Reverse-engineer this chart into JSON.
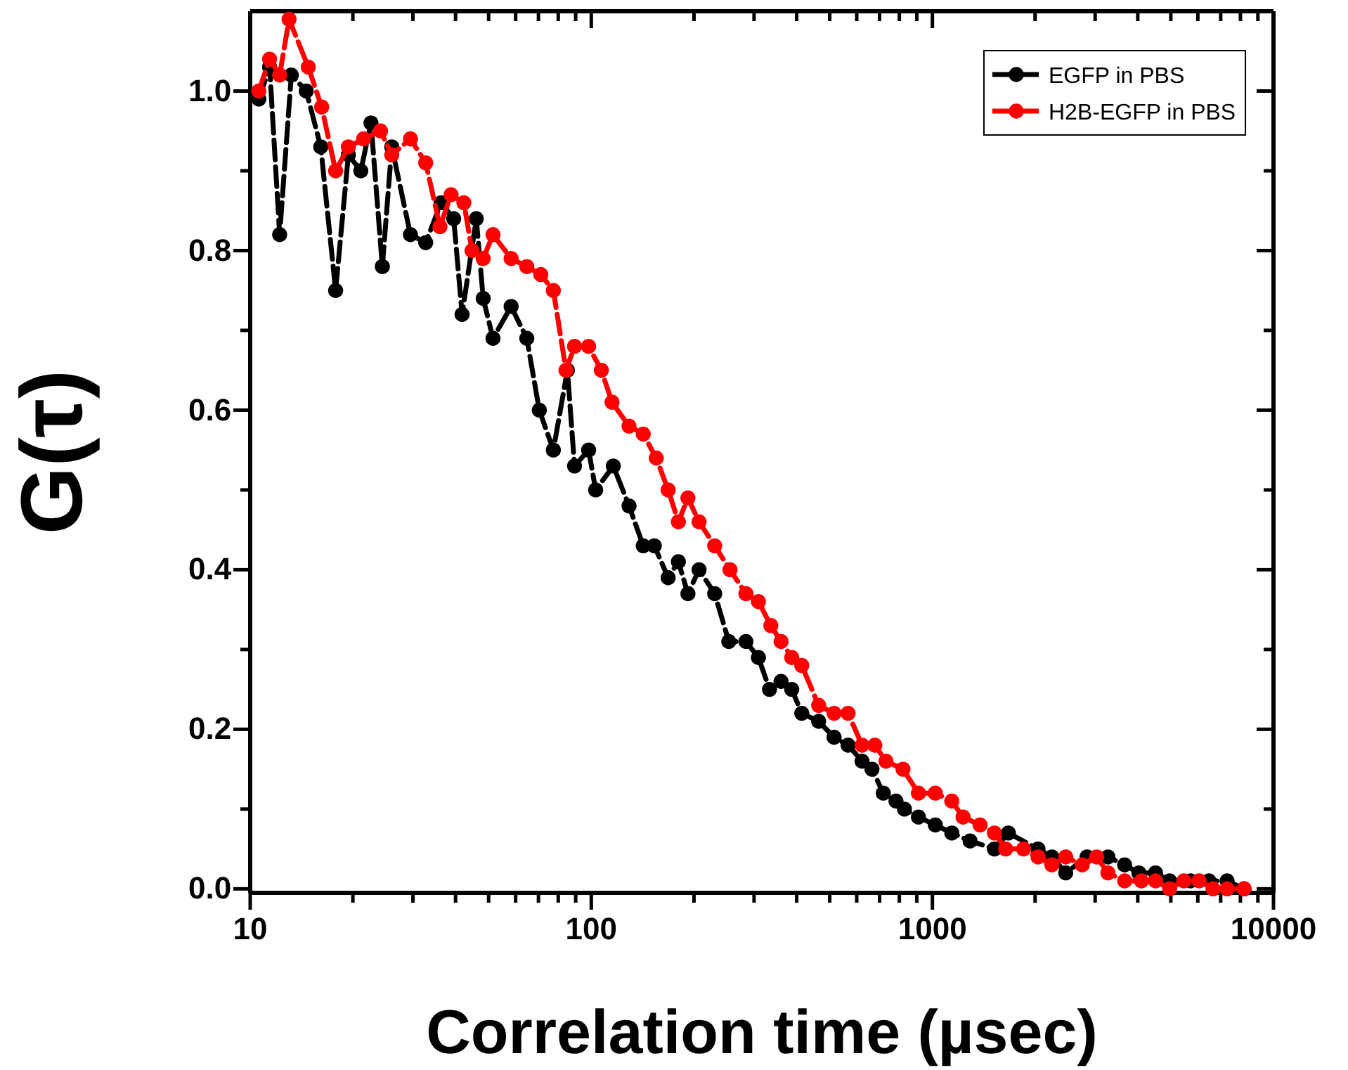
{
  "chart_data": {
    "type": "line",
    "xlabel": "Correlation time (µsec)",
    "ylabel": "G(τ)",
    "log": "x",
    "xlim": [
      10,
      10000
    ],
    "ylim": [
      -0.005,
      1.1
    ],
    "xticks": [
      10,
      {
        "value": 20,
        "label": null
      },
      {
        "value": 30,
        "label": null
      },
      {
        "value": 40,
        "label": null
      },
      {
        "value": 50,
        "label": null
      },
      {
        "value": 60,
        "label": null
      },
      {
        "value": 70,
        "label": null
      },
      {
        "value": 80,
        "label": null
      },
      {
        "value": 90,
        "label": null
      },
      100,
      {
        "value": 200,
        "label": null
      },
      {
        "value": 300,
        "label": null
      },
      {
        "value": 400,
        "label": null
      },
      {
        "value": 500,
        "label": null
      },
      {
        "value": 600,
        "label": null
      },
      {
        "value": 700,
        "label": null
      },
      {
        "value": 800,
        "label": null
      },
      {
        "value": 900,
        "label": null
      },
      1000,
      {
        "value": 2000,
        "label": null
      },
      {
        "value": 3000,
        "label": null
      },
      {
        "value": 4000,
        "label": null
      },
      {
        "value": 5000,
        "label": null
      },
      {
        "value": 6000,
        "label": null
      },
      {
        "value": 7000,
        "label": null
      },
      {
        "value": 8000,
        "label": null
      },
      {
        "value": 9000,
        "label": null
      },
      10000
    ],
    "yticks": [
      {
        "value": 0,
        "label": "0.0"
      },
      {
        "value": 0.1,
        "label": null
      },
      {
        "value": 0.2,
        "label": "0.2"
      },
      {
        "value": 0.3,
        "label": null
      },
      {
        "value": 0.4,
        "label": "0.4"
      },
      {
        "value": 0.5,
        "label": null
      },
      {
        "value": 0.6,
        "label": "0.6"
      },
      {
        "value": 0.7,
        "label": null
      },
      {
        "value": 0.8,
        "label": "0.8"
      },
      {
        "value": 0.9,
        "label": null
      },
      {
        "value": 1.0,
        "label": "1.0"
      }
    ],
    "grid": false,
    "legend": "top right",
    "marker": "circle",
    "line_style": "dashed",
    "series": [
      {
        "name": "EGFP in PBS",
        "color": "#000000",
        "x": [
          10.6,
          11.4,
          12.2,
          13.2,
          14.6,
          16.1,
          17.8,
          19.4,
          21.1,
          22.6,
          24.4,
          26.0,
          29.5,
          32.7,
          36.3,
          39.5,
          41.8,
          46.0,
          48.2,
          51.5,
          58.2,
          64.7,
          70.4,
          77.4,
          85.1,
          89.3,
          98.2,
          103,
          116,
          129,
          142,
          153,
          168,
          180,
          192,
          207,
          230,
          253,
          284,
          309,
          333,
          360,
          387,
          414,
          464,
          515,
          566,
          622,
          665,
          718,
          782,
          828,
          910,
          1020,
          1140,
          1290,
          1520,
          1670,
          2040,
          2240,
          2460,
          2840,
          3270,
          3660,
          4030,
          4510,
          4960,
          5710,
          6470,
          7310,
          8200
        ],
        "values": [
          0.99,
          1.03,
          0.82,
          1.02,
          1.0,
          0.93,
          0.75,
          0.92,
          0.9,
          0.96,
          0.78,
          0.93,
          0.82,
          0.81,
          0.86,
          0.84,
          0.72,
          0.84,
          0.74,
          0.69,
          0.73,
          0.69,
          0.6,
          0.55,
          0.65,
          0.53,
          0.55,
          0.5,
          0.53,
          0.48,
          0.43,
          0.43,
          0.39,
          0.41,
          0.37,
          0.4,
          0.37,
          0.31,
          0.31,
          0.29,
          0.25,
          0.26,
          0.25,
          0.22,
          0.21,
          0.19,
          0.18,
          0.16,
          0.15,
          0.12,
          0.11,
          0.1,
          0.09,
          0.08,
          0.07,
          0.06,
          0.05,
          0.07,
          0.05,
          0.04,
          0.02,
          0.04,
          0.04,
          0.03,
          0.02,
          0.02,
          0.01,
          0.01,
          0.01,
          0.01,
          0.0
        ]
      },
      {
        "name": "H2B-EGFP in PBS",
        "color": "#ff0000",
        "x": [
          10.6,
          11.4,
          12.2,
          13.0,
          14.8,
          16.2,
          17.8,
          19.4,
          21.5,
          24.1,
          26.0,
          29.5,
          32.7,
          36.0,
          38.8,
          42.3,
          44.7,
          48.2,
          51.5,
          58.2,
          64.7,
          71.1,
          77.4,
          84.3,
          89.3,
          98.2,
          107,
          115,
          129,
          142,
          155,
          168,
          180,
          192,
          207,
          230,
          255,
          284,
          309,
          336,
          360,
          387,
          414,
          464,
          515,
          566,
          622,
          678,
          731,
          820,
          910,
          1020,
          1140,
          1230,
          1380,
          1520,
          1640,
          1850,
          2040,
          2240,
          2460,
          2750,
          3030,
          3270,
          3660,
          4100,
          4510,
          4960,
          5460,
          6050,
          6650,
          7310,
          8200
        ],
        "values": [
          1.0,
          1.04,
          1.02,
          1.09,
          1.03,
          0.98,
          0.9,
          0.93,
          0.94,
          0.95,
          0.92,
          0.94,
          0.91,
          0.83,
          0.87,
          0.86,
          0.8,
          0.79,
          0.82,
          0.79,
          0.78,
          0.77,
          0.75,
          0.65,
          0.68,
          0.68,
          0.65,
          0.61,
          0.58,
          0.57,
          0.54,
          0.5,
          0.46,
          0.49,
          0.46,
          0.43,
          0.4,
          0.37,
          0.36,
          0.33,
          0.31,
          0.29,
          0.28,
          0.23,
          0.22,
          0.22,
          0.18,
          0.18,
          0.16,
          0.15,
          0.12,
          0.12,
          0.11,
          0.09,
          0.08,
          0.07,
          0.05,
          0.05,
          0.04,
          0.03,
          0.04,
          0.03,
          0.04,
          0.02,
          0.01,
          0.01,
          0.01,
          0.0,
          0.01,
          0.01,
          0.0,
          0.0,
          0.0
        ]
      }
    ]
  }
}
